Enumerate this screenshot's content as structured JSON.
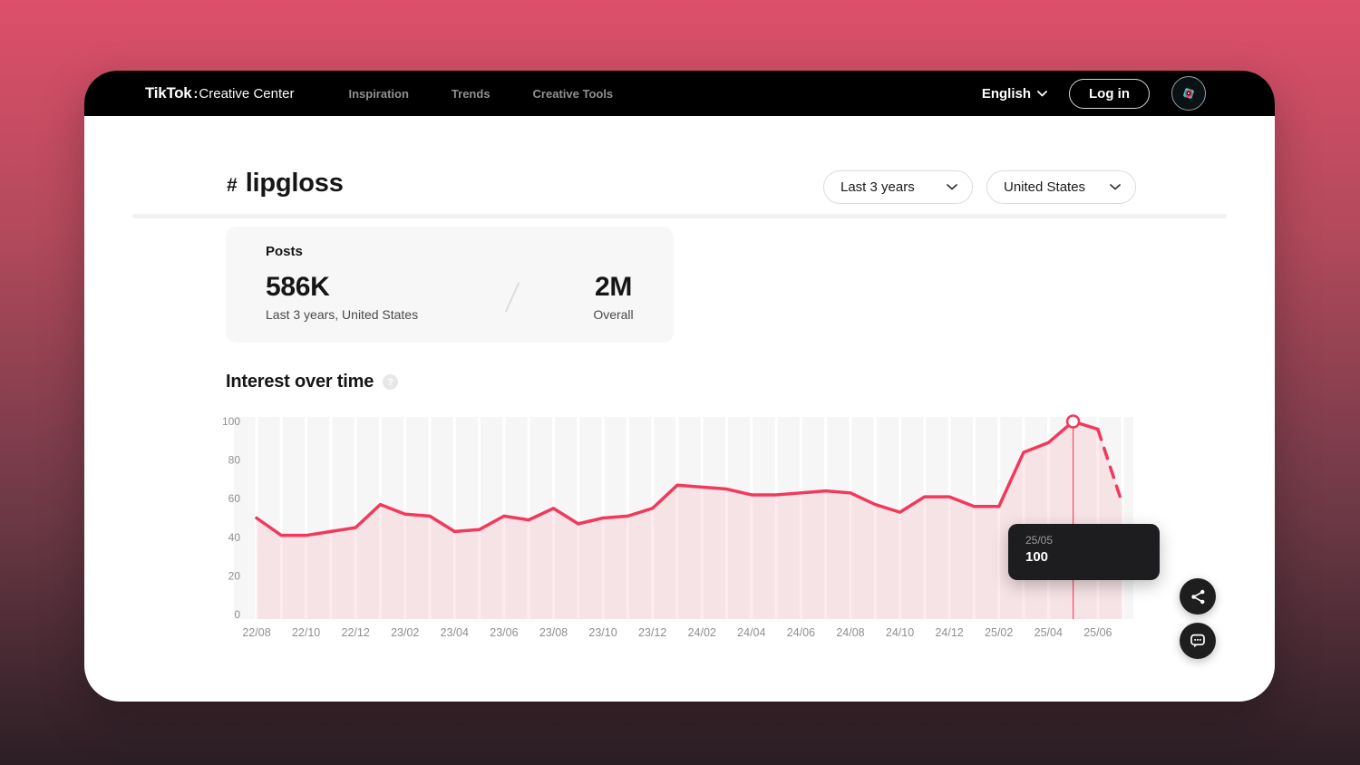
{
  "nav": {
    "logo_bold": "TikTok",
    "logo_colon": ":",
    "logo_rest": "Creative Center",
    "items": [
      {
        "label": "Inspiration"
      },
      {
        "label": "Trends"
      },
      {
        "label": "Creative Tools"
      }
    ],
    "language": "English",
    "login_label": "Log in"
  },
  "header": {
    "hash": "#",
    "title": "lipgloss",
    "filters": [
      {
        "label": "Last 3 years"
      },
      {
        "label": "United States"
      }
    ]
  },
  "posts_card": {
    "title": "Posts",
    "primary_value": "586K",
    "primary_caption": "Last 3 years, United States",
    "secondary_value": "2M",
    "secondary_caption": "Overall"
  },
  "section": {
    "title": "Interest over time",
    "help_glyph": "?"
  },
  "tooltip": {
    "date": "25/05",
    "value": "100"
  },
  "chart_data": {
    "type": "area",
    "title": "Interest over time",
    "xlabel": "",
    "ylabel": "",
    "ylim": [
      0,
      100
    ],
    "yticks": [
      0,
      20,
      40,
      60,
      80,
      100
    ],
    "grid": "vertical-white-stripes",
    "legend": "none",
    "x": [
      "22/08",
      "22/09",
      "22/10",
      "22/11",
      "22/12",
      "23/01",
      "23/02",
      "23/03",
      "23/04",
      "23/05",
      "23/06",
      "23/07",
      "23/08",
      "23/09",
      "23/10",
      "23/11",
      "23/12",
      "24/01",
      "24/02",
      "24/03",
      "24/04",
      "24/05",
      "24/06",
      "24/07",
      "24/08",
      "24/09",
      "24/10",
      "24/11",
      "24/12",
      "25/01",
      "25/02",
      "25/03",
      "25/04",
      "25/05",
      "25/06",
      "25/07"
    ],
    "values": [
      50,
      41,
      41,
      43,
      45,
      57,
      52,
      51,
      43,
      44,
      51,
      49,
      55,
      47,
      50,
      51,
      55,
      67,
      66,
      65,
      62,
      62,
      63,
      64,
      63,
      57,
      53,
      61,
      61,
      56,
      56,
      84,
      89,
      100,
      96,
      57
    ],
    "x_tick_labels": [
      "22/08",
      "22/10",
      "22/12",
      "23/02",
      "23/04",
      "23/06",
      "23/08",
      "23/10",
      "23/12",
      "24/02",
      "24/04",
      "24/06",
      "24/08",
      "24/10",
      "24/12",
      "25/02",
      "25/04",
      "25/06"
    ],
    "dashed_from_index": 34,
    "marker": {
      "x": "25/05",
      "value": 100
    },
    "line_color": "#f2395b",
    "fill_color": "rgba(242,57,91,0.10)",
    "plot_bg": "#f6f6f6",
    "stripe_color": "#ffffff",
    "tick_color": "#8f8f8f"
  },
  "floating_buttons": [
    {
      "name": "share"
    },
    {
      "name": "feedback"
    }
  ],
  "colors": {
    "accent": "#f2395b",
    "nav_bg": "#000000",
    "tooltip_bg": "#1d1d1f"
  }
}
